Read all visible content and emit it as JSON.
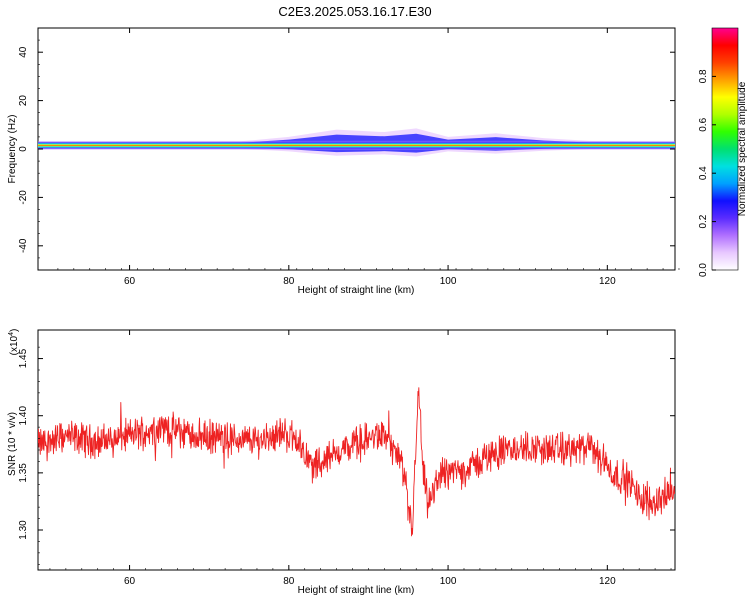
{
  "title": "C2E3.2025.053.16.17.E30",
  "chart_data": [
    {
      "type": "heatmap",
      "xlabel": "Height of straight line (km)",
      "ylabel": "Frequency (Hz)",
      "xlim": [
        48.5,
        128.5
      ],
      "ylim": [
        -50,
        50
      ],
      "x_ticks": [
        60,
        80,
        100,
        120
      ],
      "y_ticks": [
        40,
        20,
        0,
        -20,
        -40
      ],
      "colorbar": {
        "label": "Normalized spectral amplitude",
        "range": [
          0,
          1
        ],
        "ticks": [
          0.0,
          0.2,
          0.4,
          0.6,
          0.8
        ],
        "tick_labels": [
          "0.0",
          "0.2",
          "0.4",
          "0.6",
          "0.8"
        ],
        "colormap": [
          "#ffffff",
          "#e8c8ff",
          "#b070ff",
          "#5a2cff",
          "#1010ff",
          "#00a0ff",
          "#00e0e0",
          "#00e070",
          "#30ff00",
          "#b0ff00",
          "#ffff00",
          "#ffa000",
          "#ff4000",
          "#ff0000",
          "#ff0090"
        ]
      },
      "band": {
        "center_hz": 1.5,
        "core_halfwidth_hz": 0.8,
        "profile": [
          {
            "x": 48.5,
            "spread_hz": 0.5
          },
          {
            "x": 74,
            "spread_hz": 0.7
          },
          {
            "x": 80,
            "spread_hz": 2.5
          },
          {
            "x": 86,
            "spread_hz": 5.5
          },
          {
            "x": 92,
            "spread_hz": 4.5
          },
          {
            "x": 96,
            "spread_hz": 6.0
          },
          {
            "x": 100,
            "spread_hz": 2.5
          },
          {
            "x": 106,
            "spread_hz": 4.0
          },
          {
            "x": 112,
            "spread_hz": 2.0
          },
          {
            "x": 118,
            "spread_hz": 0.8
          },
          {
            "x": 128.5,
            "spread_hz": 0.5
          }
        ]
      }
    },
    {
      "type": "line",
      "xlabel": "Height of straight line (km)",
      "ylabel": "SNR (10 * v/v)",
      "y_multiplier_label": "(x10",
      "y_multiplier_exp": "4",
      "y_multiplier_close": ")",
      "xlim": [
        48.5,
        128.5
      ],
      "ylim": [
        1.265,
        1.475
      ],
      "x_ticks": [
        60,
        80,
        100,
        120
      ],
      "y_ticks": [
        1.3,
        1.35,
        1.4,
        1.45
      ],
      "y_tick_labels": [
        "1.30",
        "1.35",
        "1.40",
        "1.45"
      ],
      "color": "#ee2222",
      "series": [
        {
          "x": [
            48.5,
            52,
            56,
            60,
            64,
            68,
            72,
            76,
            79,
            81,
            83,
            86,
            89,
            92,
            94,
            95.5,
            96.3,
            96.8,
            97.5,
            99,
            102,
            106,
            110,
            114,
            118,
            121,
            122.5,
            124,
            126,
            128.5
          ],
          "values": [
            1.375,
            1.382,
            1.377,
            1.383,
            1.39,
            1.383,
            1.38,
            1.378,
            1.385,
            1.38,
            1.355,
            1.368,
            1.378,
            1.383,
            1.36,
            1.3,
            1.425,
            1.355,
            1.32,
            1.35,
            1.352,
            1.368,
            1.372,
            1.37,
            1.372,
            1.348,
            1.345,
            1.328,
            1.325,
            1.335
          ]
        }
      ]
    }
  ]
}
